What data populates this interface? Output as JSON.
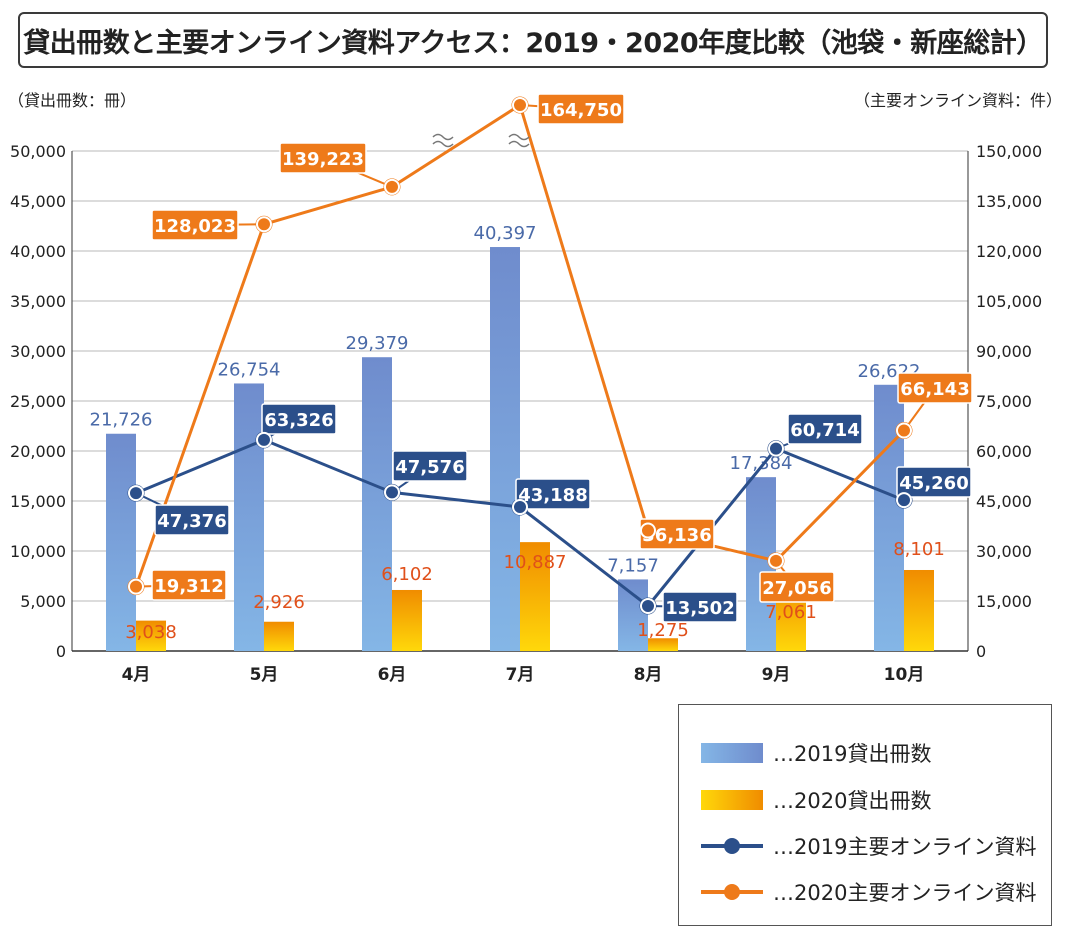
{
  "title": "貸出冊数と主要オンライン資料アクセス：2019・2020年度比較（池袋・新座総計）",
  "left_axis_unit": "（貸出冊数：冊）",
  "right_axis_unit": "（主要オンライン資料：件）",
  "colors": {
    "bar_2019_top": "#6f8ccd",
    "bar_2019_bottom": "#84b6e6",
    "bar_2020_top": "#f08c00",
    "bar_2020_bottom": "#ffd80a",
    "line_2019": "#2b4f8a",
    "line_2020": "#ee7a1a",
    "label_2019_text": "#4a6aa8",
    "label_2020_text": "#e0501a"
  },
  "legend": {
    "bar_2019": "…2019貸出冊数",
    "bar_2020": "…2020貸出冊数",
    "line_2019": "…2019主要オンライン資料",
    "line_2020": "…2020主要オンライン資料"
  },
  "chart_data": {
    "type": "bar",
    "title": "貸出冊数と主要オンライン資料アクセス：2019・2020年度比較（池袋・新座総計）",
    "categories": [
      "4月",
      "5月",
      "6月",
      "7月",
      "8月",
      "9月",
      "10月"
    ],
    "left_axis": {
      "label": "（貸出冊数：冊）",
      "ylim": [
        0,
        50000
      ],
      "ticks": [
        "0",
        "5,000",
        "10,000",
        "15,000",
        "20,000",
        "25,000",
        "30,000",
        "35,000",
        "40,000",
        "45,000",
        "50,000"
      ]
    },
    "right_axis": {
      "label": "（主要オンライン資料：件）",
      "ylim": [
        0,
        150000
      ],
      "ticks": [
        "0",
        "15,000",
        "30,000",
        "45,000",
        "60,000",
        "75,000",
        "90,000",
        "105,000",
        "120,000",
        "135,000",
        "150,000"
      ]
    },
    "grid": true,
    "legend_position": "bottom-right",
    "bar_series": [
      {
        "name": "2019貸出冊数",
        "axis": "left",
        "values": [
          21726,
          26754,
          29379,
          40397,
          7157,
          17384,
          26622
        ],
        "labels": [
          "21,726",
          "26,754",
          "29,379",
          "40,397",
          "7,157",
          "17,384",
          "26,622"
        ]
      },
      {
        "name": "2020貸出冊数",
        "axis": "left",
        "values": [
          3038,
          2926,
          6102,
          10887,
          1275,
          7061,
          8101
        ],
        "labels": [
          "3,038",
          "2,926",
          "6,102",
          "10,887",
          "1,275",
          "7,061",
          "8,101"
        ]
      }
    ],
    "line_series": [
      {
        "name": "2019主要オンライン資料",
        "axis": "right",
        "values": [
          47376,
          63326,
          47576,
          43188,
          13502,
          60714,
          45260
        ],
        "labels": [
          "47,376",
          "63,326",
          "47,576",
          "43,188",
          "13,502",
          "60,714",
          "45,260"
        ]
      },
      {
        "name": "2020主要オンライン資料",
        "axis": "right",
        "values": [
          19312,
          128023,
          139223,
          164750,
          36136,
          27056,
          66143
        ],
        "labels": [
          "19,312",
          "128,023",
          "139,223",
          "164,750",
          "36,136",
          "27,056",
          "66,143"
        ],
        "axis_break": "7月"
      }
    ]
  }
}
